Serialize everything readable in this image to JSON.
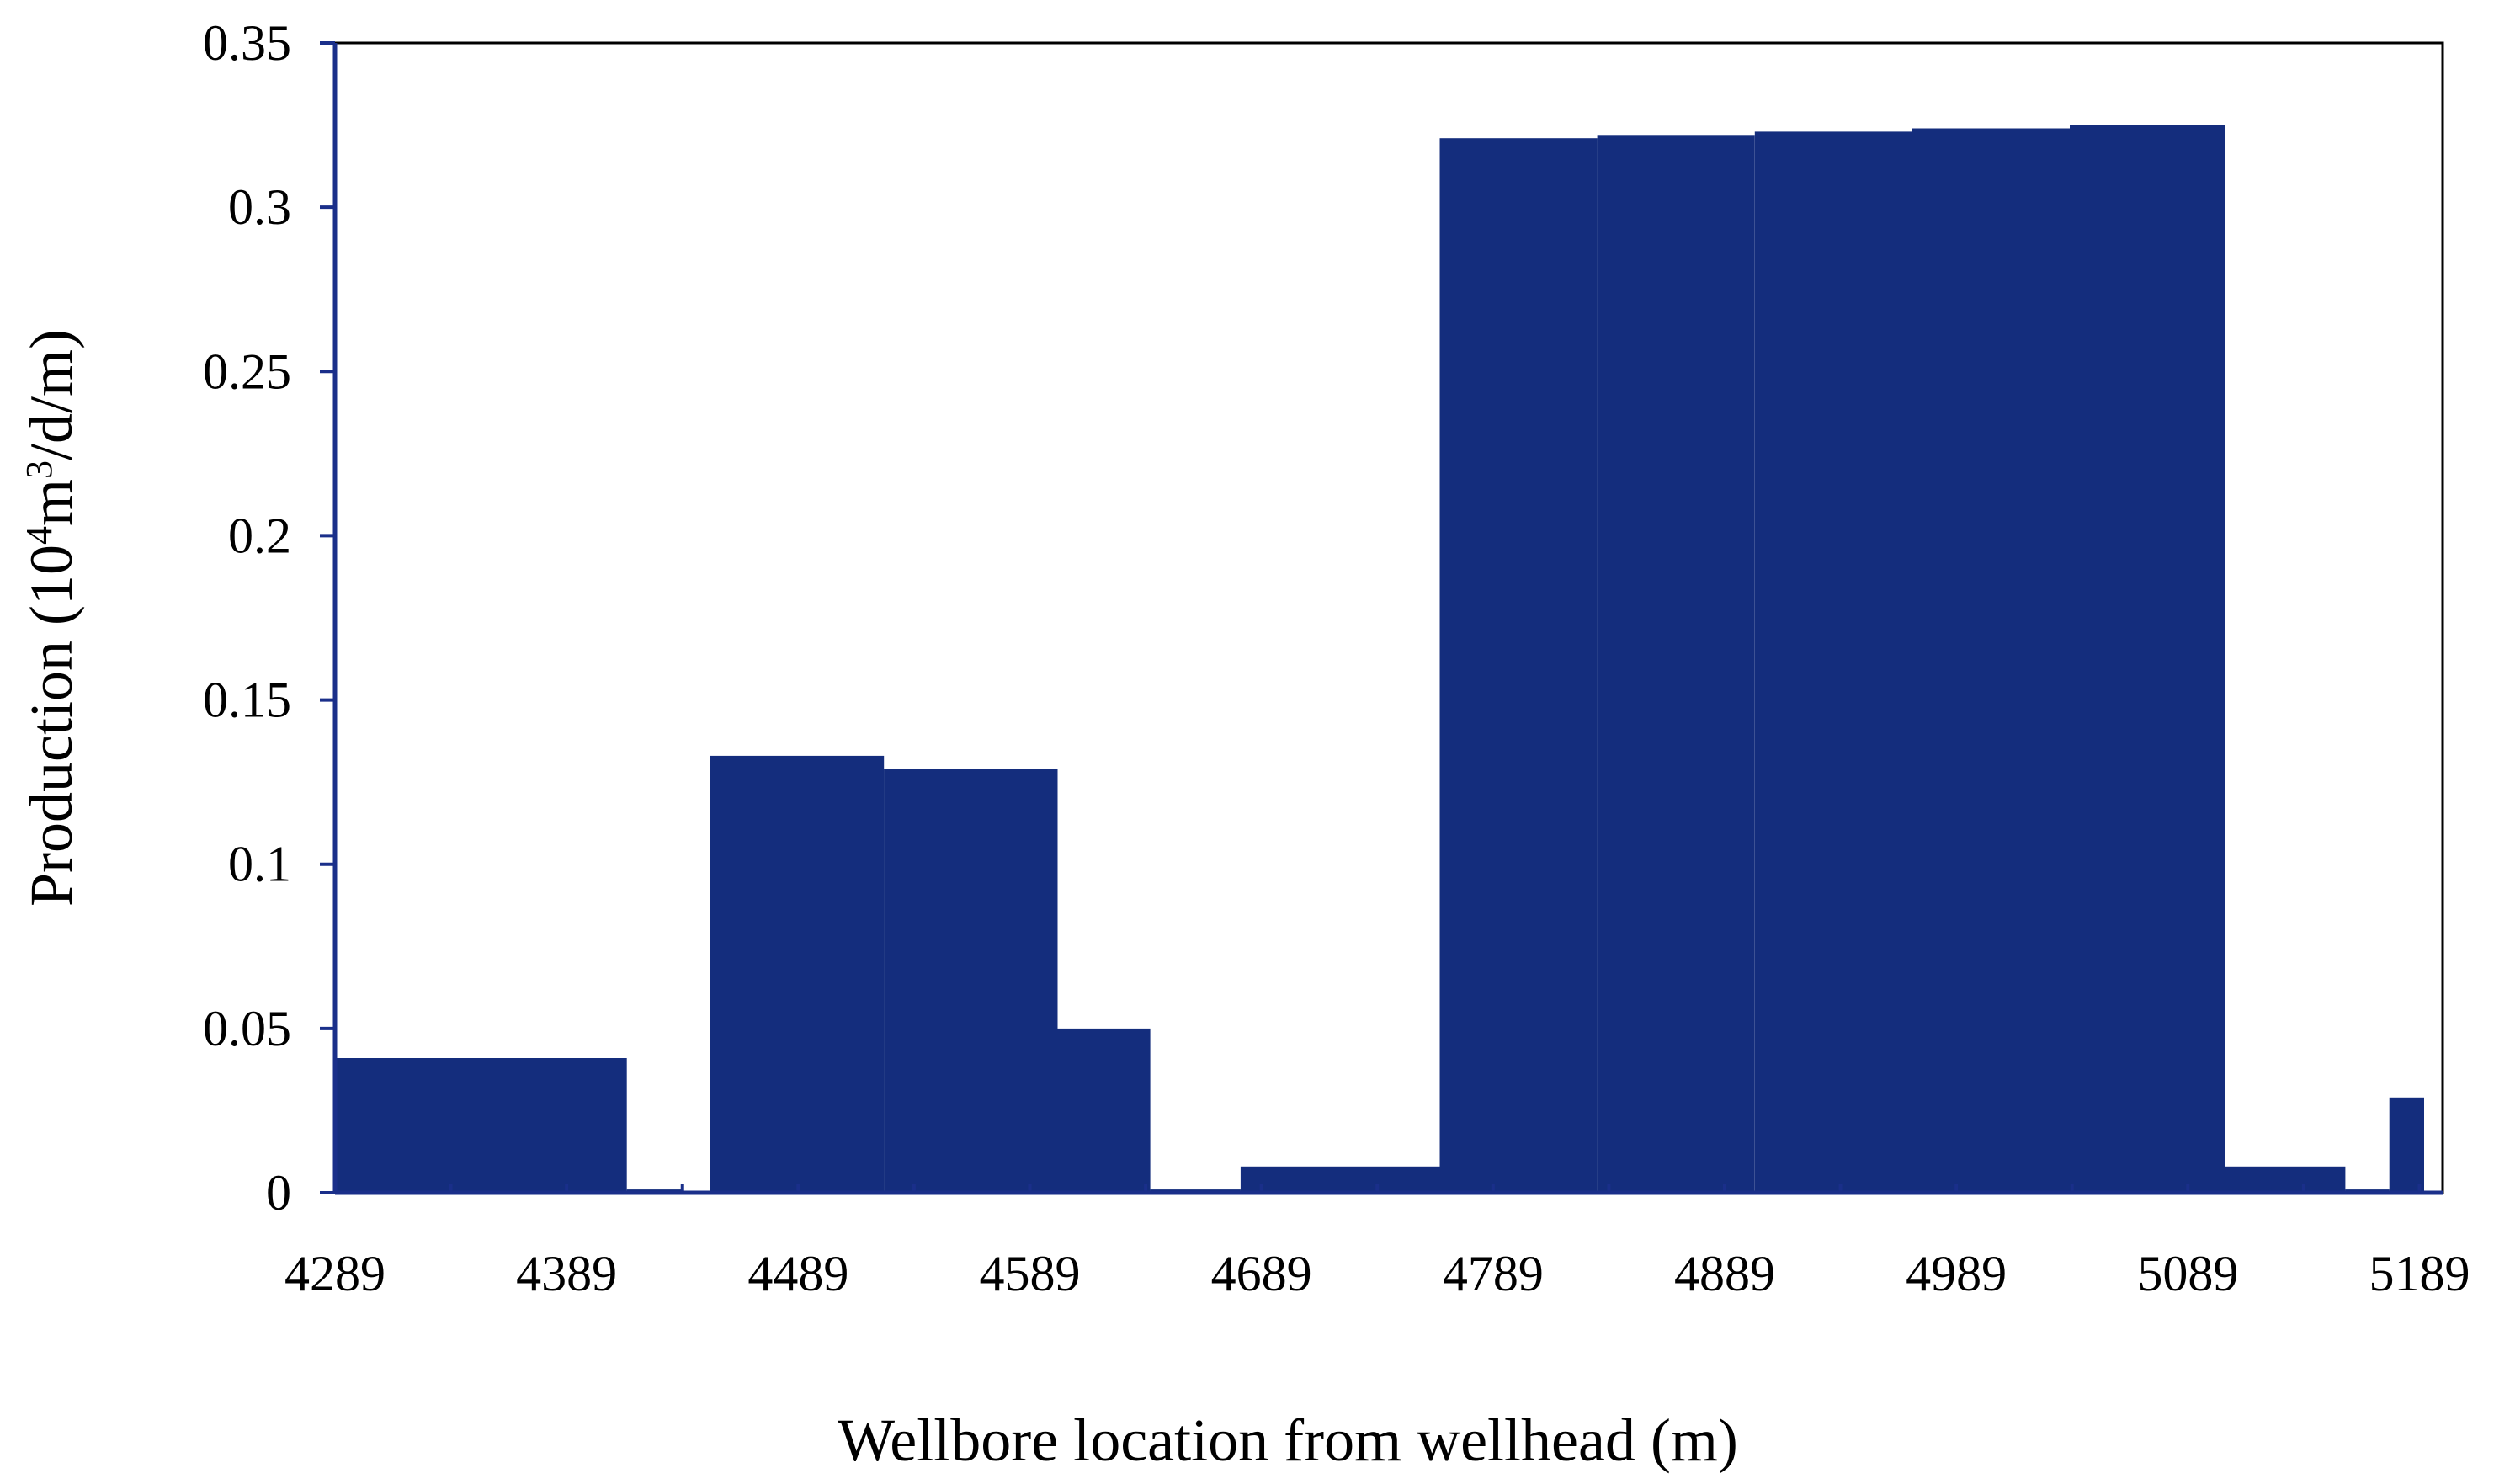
{
  "chart_data": {
    "type": "bar",
    "title": "",
    "xlabel": "Wellbore location from wellhead (m)",
    "ylabel": {
      "prefix": "Production (10",
      "sup1": "4",
      "mid": "m",
      "sup2": "3",
      "suffix": "/d/m)"
    },
    "xlim": [
      4289,
      5199
    ],
    "ylim": [
      0,
      0.35
    ],
    "xticks": [
      "4289",
      "4389",
      "4489",
      "4589",
      "4689",
      "4789",
      "4889",
      "4989",
      "5089",
      "5189"
    ],
    "yticks": [
      "0",
      "0.05",
      "0.1",
      "0.15",
      "0.2",
      "0.25",
      "0.3",
      "0.35"
    ],
    "bar_color": "#142d7d",
    "series": [
      {
        "bars": [
          {
            "x_start": 4289,
            "x_end": 4415,
            "value": 0.041
          },
          {
            "x_start": 4415,
            "x_end": 4439,
            "value": 0.001
          },
          {
            "x_start": 4451,
            "x_end": 4526,
            "value": 0.133
          },
          {
            "x_start": 4526,
            "x_end": 4601,
            "value": 0.129
          },
          {
            "x_start": 4601,
            "x_end": 4641,
            "value": 0.05
          },
          {
            "x_start": 4641,
            "x_end": 4680,
            "value": 0.001
          },
          {
            "x_start": 4680,
            "x_end": 4766,
            "value": 0.008
          },
          {
            "x_start": 4766,
            "x_end": 4834,
            "value": 0.321
          },
          {
            "x_start": 4834,
            "x_end": 4902,
            "value": 0.322
          },
          {
            "x_start": 4902,
            "x_end": 4970,
            "value": 0.323
          },
          {
            "x_start": 4970,
            "x_end": 5038,
            "value": 0.324
          },
          {
            "x_start": 5038,
            "x_end": 5105,
            "value": 0.325
          },
          {
            "x_start": 5105,
            "x_end": 5157,
            "value": 0.008
          },
          {
            "x_start": 5157,
            "x_end": 5176,
            "value": 0.001
          },
          {
            "x_start": 5176,
            "x_end": 5191,
            "value": 0.029
          }
        ]
      }
    ]
  }
}
